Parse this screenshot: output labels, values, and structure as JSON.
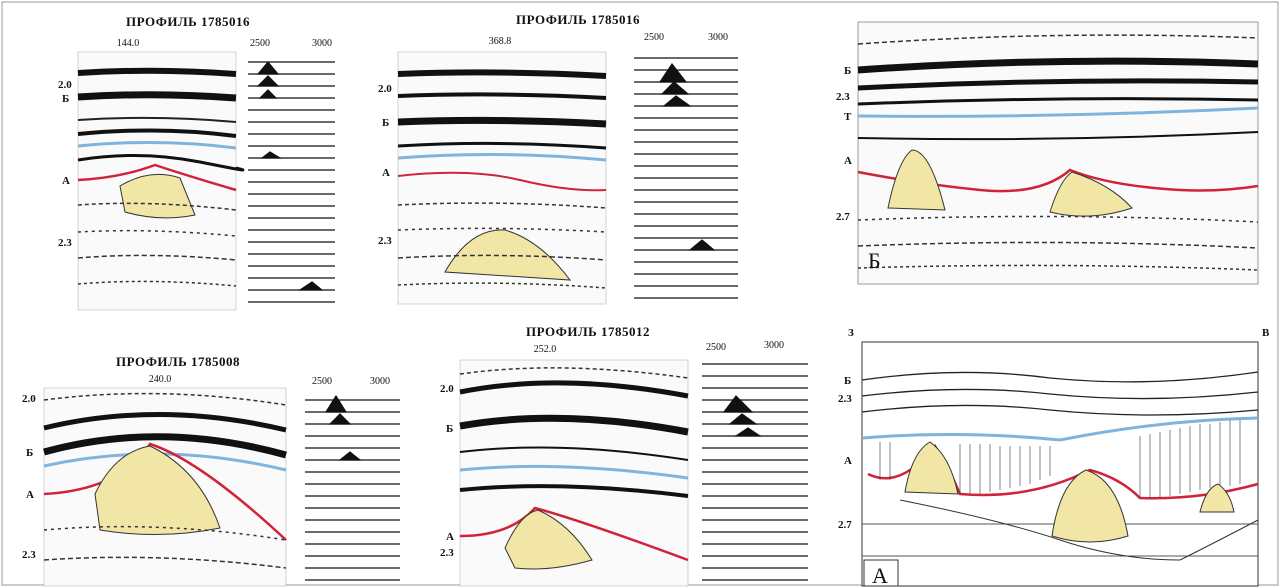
{
  "panels": {
    "p1": {
      "title": "ПРОФИЛЬ 1785016",
      "tick": "144.0",
      "labels": {
        "t20": "2.0",
        "B": "Б",
        "A": "А",
        "t23": "2.3"
      },
      "vel": {
        "v1": "2500",
        "v2": "3000"
      }
    },
    "p2": {
      "title": "ПРОФИЛЬ 1785016",
      "tick": "368.8",
      "labels": {
        "t20": "2.0",
        "B": "Б",
        "A": "А",
        "t23": "2.3"
      },
      "vel": {
        "v1": "2500",
        "v2": "3000"
      }
    },
    "p3": {
      "title": "ПРОФИЛЬ 1785008",
      "tick": "240.0",
      "labels": {
        "t20": "2.0",
        "B": "Б",
        "A": "А",
        "t23": "2.3"
      },
      "vel": {
        "v1": "2500",
        "v2": "3000"
      }
    },
    "p4": {
      "title": "ПРОФИЛЬ 1785012",
      "tick": "252.0",
      "labels": {
        "t20": "2.0",
        "B": "Б",
        "A": "А",
        "t23": "2.3"
      },
      "vel": {
        "v1": "2500",
        "v2": "3000"
      }
    },
    "panel_b": {
      "letter": "Б",
      "labels": {
        "B": "Б",
        "t23": "2.3",
        "T": "T",
        "A": "А",
        "t27": "2.7"
      }
    },
    "panel_a": {
      "letter": "А",
      "west": "З",
      "east": "В",
      "labels": {
        "B": "Б",
        "t23": "2.3",
        "A": "А",
        "t27": "2.7"
      }
    }
  },
  "colors": {
    "horizon_red": "#d0233a",
    "horizon_blue": "#7fb4dd",
    "body_fill": "#f1e6a6",
    "ink": "#111111"
  }
}
